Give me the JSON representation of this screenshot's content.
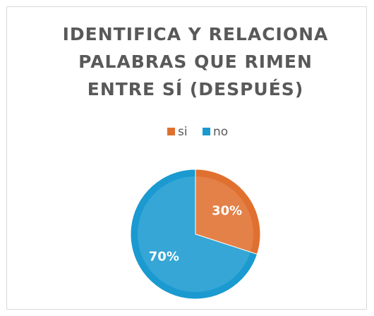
{
  "chart_data": {
    "type": "pie",
    "title": [
      "IDENTIFICA Y RELACIONA",
      "PALABRAS QUE RIMEN",
      "ENTRE SÍ (DESPUÉS)"
    ],
    "categories": [
      "si",
      "no"
    ],
    "values": [
      30,
      70
    ],
    "value_labels": [
      "30%",
      "70%"
    ],
    "colors": [
      "#e0702f",
      "#1a9ad0"
    ],
    "legend": "top"
  }
}
